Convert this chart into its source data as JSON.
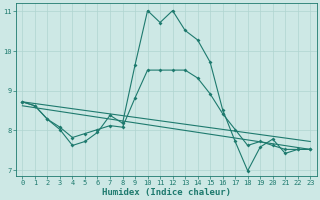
{
  "xlabel": "Humidex (Indice chaleur)",
  "bg_color": "#cde8e5",
  "line_color": "#1e7a6e",
  "grid_color": "#b0d5d0",
  "xlim": [
    -0.5,
    23.5
  ],
  "ylim": [
    6.85,
    11.2
  ],
  "yticks": [
    7,
    8,
    9,
    10,
    11
  ],
  "xticks": [
    0,
    1,
    2,
    3,
    4,
    5,
    6,
    7,
    8,
    9,
    10,
    11,
    12,
    13,
    14,
    15,
    16,
    17,
    18,
    19,
    20,
    21,
    22,
    23
  ],
  "curve1_x": [
    0,
    1,
    2,
    3,
    4,
    5,
    6,
    7,
    8,
    9,
    10,
    11,
    12,
    13,
    14,
    15,
    16,
    17,
    18,
    19,
    20,
    21,
    22,
    23
  ],
  "curve1_y": [
    8.72,
    8.62,
    8.28,
    8.02,
    7.62,
    7.72,
    7.95,
    8.38,
    8.18,
    9.65,
    11.02,
    10.72,
    11.02,
    10.52,
    10.28,
    9.72,
    8.52,
    7.72,
    6.98,
    7.58,
    7.78,
    7.42,
    7.52,
    7.52
  ],
  "curve2_x": [
    0,
    1,
    2,
    3,
    4,
    5,
    6,
    7,
    8,
    9,
    10,
    11,
    12,
    13,
    14,
    15,
    16,
    17,
    18,
    19,
    20,
    21,
    22,
    23
  ],
  "curve2_y": [
    8.72,
    8.62,
    8.28,
    8.08,
    7.82,
    7.92,
    8.02,
    8.12,
    8.08,
    8.82,
    9.52,
    9.52,
    9.52,
    9.52,
    9.32,
    8.92,
    8.42,
    8.02,
    7.62,
    7.72,
    7.62,
    7.52,
    7.52,
    7.52
  ],
  "line1_x": [
    0,
    23
  ],
  "line1_y": [
    8.72,
    7.72
  ],
  "line2_x": [
    0,
    23
  ],
  "line2_y": [
    8.62,
    7.52
  ]
}
